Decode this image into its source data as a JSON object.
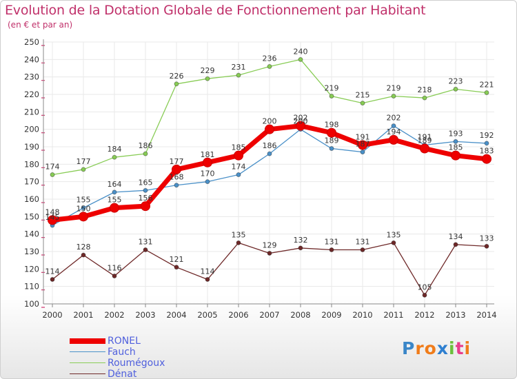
{
  "title": "Evolution de la Dotation Globale de Fonctionnement par Habitant",
  "subtitle": "(en € et par an)",
  "colors": {
    "title": "#c0306a",
    "legend_text": "#5060dd",
    "axis": "#888888",
    "grid": "#e8e8e8",
    "axis_marks": "#d0306a"
  },
  "chart_data": {
    "type": "line",
    "x": [
      "2000",
      "2001",
      "2002",
      "2003",
      "2004",
      "2005",
      "2006",
      "2007",
      "2008",
      "2009",
      "2010",
      "2011",
      "2012",
      "2013",
      "2014"
    ],
    "ylim": [
      100,
      250
    ],
    "yticks": [
      100,
      110,
      120,
      130,
      140,
      150,
      160,
      170,
      180,
      190,
      200,
      210,
      220,
      230,
      240,
      250
    ],
    "grid": true,
    "legend_position": "bottom-left",
    "series": [
      {
        "name": "RONEL",
        "color": "#ee0000",
        "emphasis": true,
        "values": [
          148,
          150,
          155,
          156,
          177,
          181,
          185,
          200,
          202,
          198,
          191,
          194,
          189,
          185,
          183
        ]
      },
      {
        "name": "Fauch",
        "color": "#4a90c8",
        "values": [
          145,
          155,
          164,
          165,
          168,
          170,
          174,
          186,
          200,
          189,
          187,
          202,
          191,
          193,
          192
        ]
      },
      {
        "name": "Roumégoux",
        "color": "#88cc55",
        "values": [
          174,
          177,
          184,
          186,
          226,
          229,
          231,
          236,
          240,
          219,
          215,
          219,
          218,
          223,
          221
        ]
      },
      {
        "name": "Dénat",
        "color": "#6e2828",
        "values": [
          114,
          128,
          116,
          131,
          121,
          114,
          135,
          129,
          132,
          131,
          131,
          135,
          105,
          134,
          133
        ]
      }
    ]
  },
  "logo": {
    "letters": [
      "P",
      "r",
      "o",
      "x",
      "i",
      "t",
      "i"
    ],
    "colors": [
      "#3a86c8",
      "#f07c1a",
      "#f07c1a",
      "#2e7fd0",
      "#6cbf3c",
      "#e83e8c",
      "#f07c1a"
    ]
  }
}
